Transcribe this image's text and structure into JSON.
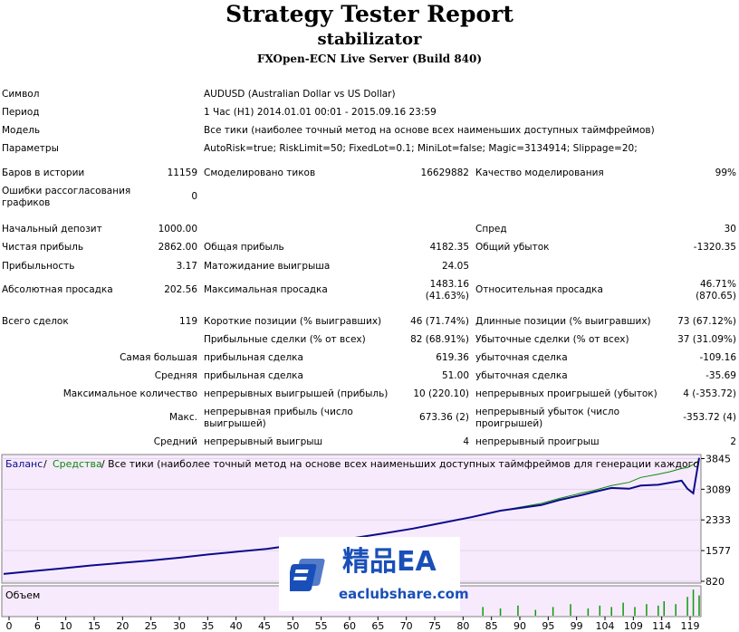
{
  "header": {
    "title": "Strategy Tester Report",
    "expert": "stabilizator",
    "server": "FXOpen-ECN Live Server (Build 840)"
  },
  "info": [
    {
      "label": "Символ",
      "value": "AUDUSD (Australian Dollar vs US Dollar)"
    },
    {
      "label": "Период",
      "value": "1 Час (H1) 2014.01.01 00:01 - 2015.09.16 23:59"
    },
    {
      "label": "Модель",
      "value": "Все тики (наиболее точный метод на основе всех наименьших доступных таймфреймов)"
    },
    {
      "label": "Параметры",
      "value": "AutoRisk=true; RiskLimit=50; FixedLot=0.1; MiniLot=false; Magic=3134914; Slippage=20;"
    }
  ],
  "stats": {
    "bars_label": "Баров в истории",
    "bars": "11159",
    "ticks_label": "Смоделировано тиков",
    "ticks": "16629882",
    "quality_label": "Качество моделирования",
    "quality": "99%",
    "errors_label": "Ошибки рассогласования графиков",
    "errors": "0",
    "deposit_label": "Начальный депозит",
    "deposit": "1000.00",
    "spread_label": "Спред",
    "spread": "30",
    "net_profit_label": "Чистая прибыль",
    "net_profit": "2862.00",
    "gross_profit_label": "Общая прибыль",
    "gross_profit": "4182.35",
    "gross_loss_label": "Общий убыток",
    "gross_loss": "-1320.35",
    "profit_factor_label": "Прибыльность",
    "profit_factor": "3.17",
    "expected_payoff_label": "Матожидание выигрыша",
    "expected_payoff": "24.05",
    "abs_dd_label": "Абсолютная просадка",
    "abs_dd": "202.56",
    "max_dd_label": "Максимальная просадка",
    "max_dd": "1483.16",
    "max_dd_pct": "(41.63%)",
    "rel_dd_label": "Относительная просадка",
    "rel_dd": "46.71%",
    "rel_dd_val": "(870.65)",
    "total_trades_label": "Всего сделок",
    "total_trades": "119",
    "short_label": "Короткие позиции (% выигравших)",
    "short": "46 (71.74%)",
    "long_label": "Длинные позиции (% выигравших)",
    "long": "73 (67.12%)",
    "profit_trades_label": "Прибыльные сделки (% от всех)",
    "profit_trades": "82 (68.91%)",
    "loss_trades_label": "Убыточные сделки (% от всех)",
    "loss_trades": "37 (31.09%)",
    "largest_label": "Самая большая",
    "largest_profit_label": "прибыльная сделка",
    "largest_profit": "619.36",
    "largest_loss_label": "убыточная сделка",
    "largest_loss": "-109.16",
    "average_label": "Средняя",
    "average_profit_label": "прибыльная сделка",
    "average_profit": "51.00",
    "average_loss_label": "убыточная сделка",
    "average_loss": "-35.69",
    "max_count_label": "Максимальное количество",
    "max_cons_wins_label": "непрерывных выигрышей (прибыль)",
    "max_cons_wins": "10 (220.10)",
    "max_cons_losses_label": "непрерывных проигрышей (убыток)",
    "max_cons_losses": "4 (-353.72)",
    "max_label": "Макс.",
    "max_cons_profit_label": "непрерывная прибыль (число выигрышей)",
    "max_cons_profit": "673.36 (2)",
    "max_cons_loss_label": "непрерывный убыток (число проигрышей)",
    "max_cons_loss": "-353.72 (4)",
    "avg_label": "Средний",
    "avg_cons_wins_label": "непрерывный выигрыш",
    "avg_cons_wins": "4",
    "avg_cons_losses_label": "непрерывный проигрыш",
    "avg_cons_losses": "2"
  },
  "chart_data": {
    "type": "line",
    "legend": {
      "balance": "Баланс",
      "sep": " / ",
      "equity": "Средства",
      "rest": " / Все тики (наиболее точный метод на основе всех наименьших доступных таймфреймов для генерации каждого"
    },
    "y_ticks": [
      "3845",
      "3089",
      "2333",
      "1577",
      "820"
    ],
    "ylim": [
      820,
      3900
    ],
    "x_ticks": [
      "0",
      "6",
      "10",
      "15",
      "20",
      "25",
      "30",
      "35",
      "40",
      "45",
      "50",
      "55",
      "60",
      "65",
      "70",
      "75",
      "80",
      "85",
      "90",
      "95",
      "99",
      "104",
      "109",
      "114",
      "119"
    ],
    "volume_label": "Объем",
    "colors": {
      "balance": "#0b0b8c",
      "equity": "#0a8a0a",
      "volume": "#0a9a0a",
      "bg": "#f7eafc"
    },
    "series": [
      {
        "name": "Баланс",
        "x": [
          0,
          5,
          10,
          15,
          20,
          25,
          30,
          35,
          40,
          45,
          50,
          55,
          60,
          65,
          70,
          75,
          80,
          85,
          88,
          92,
          95,
          99,
          101,
          104,
          107,
          109,
          112,
          114,
          116,
          117,
          118,
          119
        ],
        "y": [
          1000,
          1070,
          1140,
          1210,
          1270,
          1330,
          1400,
          1480,
          1550,
          1620,
          1720,
          1810,
          1890,
          2000,
          2120,
          2260,
          2400,
          2560,
          2620,
          2700,
          2820,
          2950,
          3020,
          3120,
          3100,
          3180,
          3200,
          3250,
          3300,
          3100,
          2990,
          3862
        ]
      },
      {
        "name": "Средства",
        "x": [
          0,
          5,
          10,
          15,
          20,
          25,
          30,
          35,
          40,
          45,
          50,
          55,
          60,
          65,
          70,
          75,
          80,
          85,
          88,
          92,
          95,
          99,
          101,
          104,
          107,
          109,
          112,
          114,
          116,
          117,
          118,
          119
        ],
        "y": [
          1000,
          1070,
          1140,
          1210,
          1270,
          1330,
          1400,
          1480,
          1550,
          1620,
          1720,
          1810,
          1890,
          2000,
          2120,
          2260,
          2400,
          2560,
          2640,
          2740,
          2860,
          3000,
          3060,
          3180,
          3260,
          3380,
          3460,
          3520,
          3600,
          3620,
          3700,
          3800
        ]
      }
    ],
    "volume": [
      {
        "x": 82,
        "v": 0.3
      },
      {
        "x": 85,
        "v": 0.25
      },
      {
        "x": 88,
        "v": 0.35
      },
      {
        "x": 91,
        "v": 0.2
      },
      {
        "x": 94,
        "v": 0.3
      },
      {
        "x": 97,
        "v": 0.4
      },
      {
        "x": 100,
        "v": 0.25
      },
      {
        "x": 102,
        "v": 0.35
      },
      {
        "x": 104,
        "v": 0.3
      },
      {
        "x": 106,
        "v": 0.45
      },
      {
        "x": 108,
        "v": 0.3
      },
      {
        "x": 110,
        "v": 0.4
      },
      {
        "x": 112,
        "v": 0.35
      },
      {
        "x": 113,
        "v": 0.5
      },
      {
        "x": 115,
        "v": 0.4
      },
      {
        "x": 117,
        "v": 0.65
      },
      {
        "x": 118,
        "v": 0.9
      },
      {
        "x": 119,
        "v": 0.7
      }
    ]
  },
  "watermark": {
    "text": "精品EA",
    "url": "eaclubshare.com"
  }
}
